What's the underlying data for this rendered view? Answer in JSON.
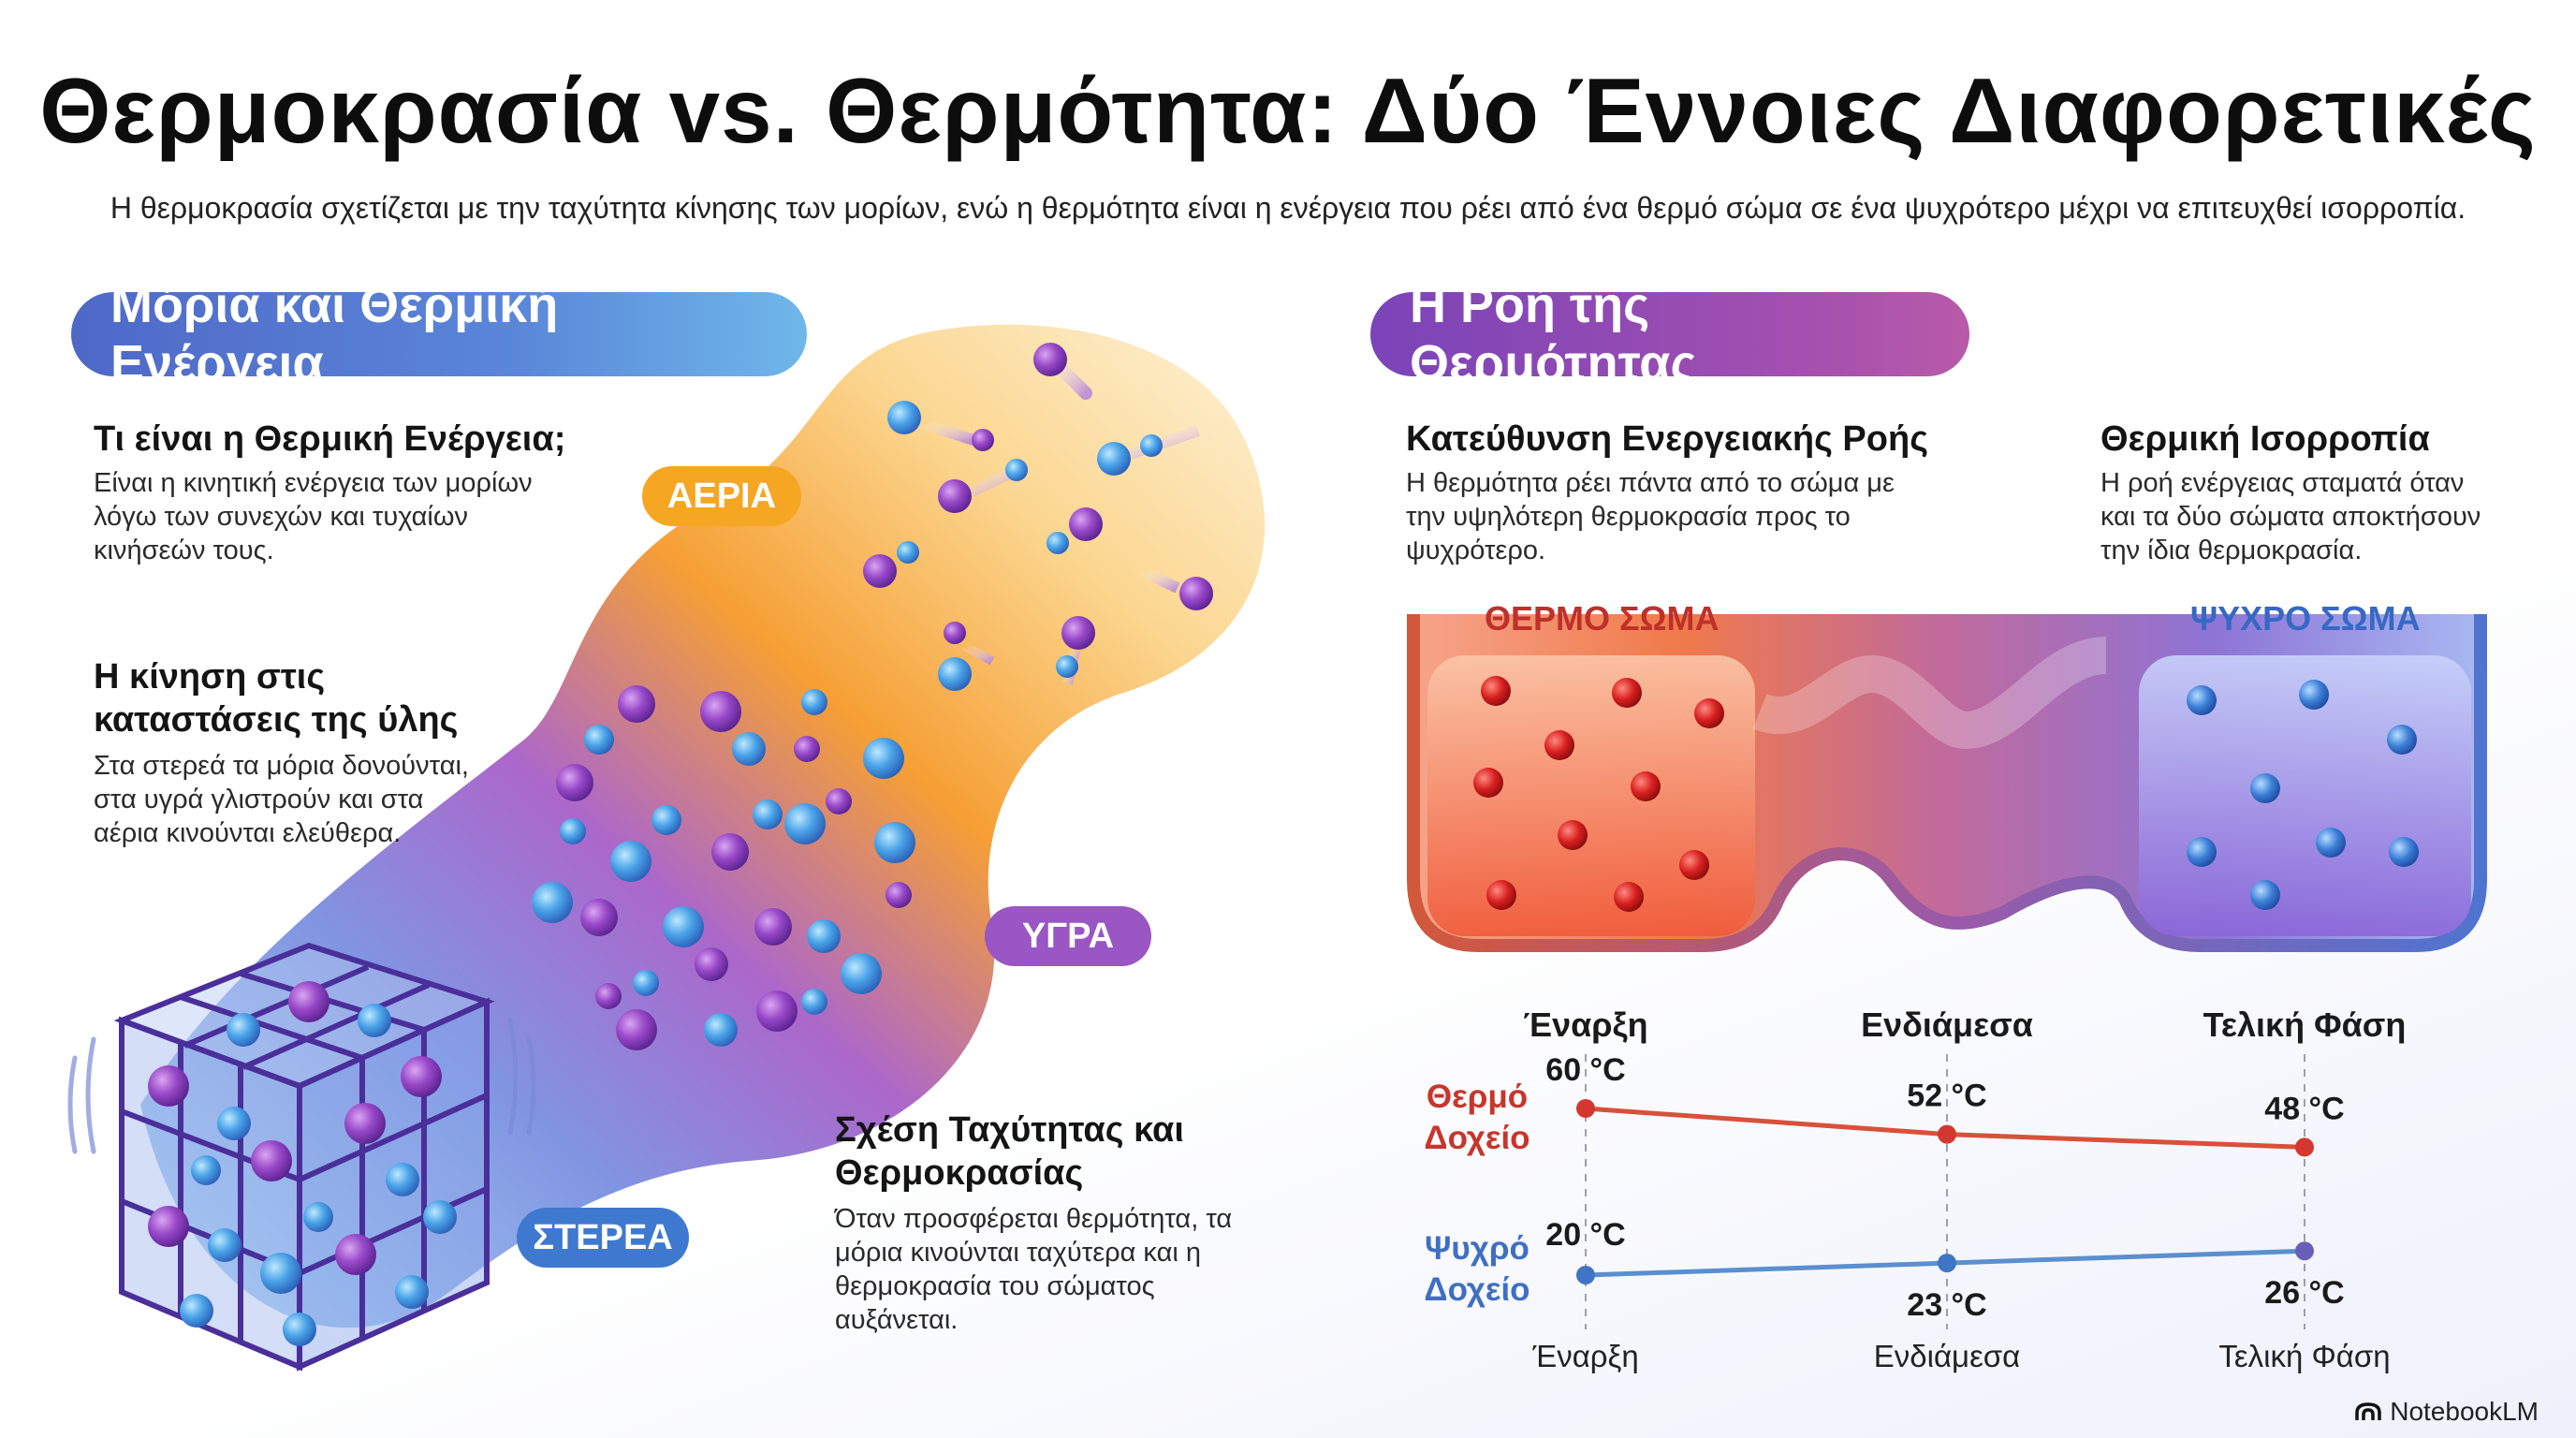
{
  "title": "Θερμοκρασία vs. Θερμότητα: Δύο Έννοιες Διαφορετικές",
  "subtitle": "Η θερμοκρασία σχετίζεται με την ταχύτητα κίνησης των μορίων, ενώ η θερμότητα είναι η ενέργεια που ρέει από ένα θερμό σώμα σε ένα ψυχρότερο μέχρι να επιτευχθεί ισορροπία.",
  "left": {
    "header": "Μόρια και Θερμική Ενέργεια",
    "blocks": [
      {
        "heading": "Τι είναι η Θερμική Ενέργεια;",
        "lines": [
          "Είναι η κινητική ενέργεια των μορίων",
          "λόγω των συνεχών και τυχαίων",
          "κινήσεών τους."
        ]
      },
      {
        "heading_lines": [
          "Η κίνηση στις",
          "καταστάσεις της ύλης"
        ],
        "lines": [
          "Στα στερεά τα μόρια δονούνται,",
          "στα υγρά γλιστρούν και στα",
          "αέρια κινούνται ελεύθερα."
        ]
      },
      {
        "heading_lines": [
          "Σχέση Ταχύτητας και",
          "Θερμοκρασίας"
        ],
        "lines": [
          "Όταν προσφέρεται θερμότητα, τα",
          "μόρια κινούνται ταχύτερα και η",
          "θερμοκρασία του σώματος",
          "αυξάνεται."
        ]
      }
    ],
    "states": {
      "gas": "ΑΕΡΙΑ",
      "liquid": "ΥΓΡΑ",
      "solid": "ΣΤΕΡΕΑ"
    }
  },
  "right": {
    "header": "Η Ροή της Θερμότητας",
    "direction": {
      "heading": "Κατεύθυνση Ενεργειακής Ροής",
      "lines": [
        "Η θερμότητα ρέει πάντα από το σώμα με",
        "την υψηλότερη θερμοκρασία προς το",
        "ψυχρότερο."
      ]
    },
    "equilibrium": {
      "heading": "Θερμική Ισορροπία",
      "lines": [
        "Η ροή ενέργειας σταματά όταν",
        "και τα δύο σώματα αποκτήσουν",
        "την ίδια θερμοκρασία."
      ]
    },
    "hot_body": "ΘΕΡΜΟ ΣΩΜΑ",
    "cold_body": "ΨΥΧΡΟ ΣΩΜΑ",
    "colors": {
      "hot": "#d4372f",
      "cold": "#3f75c4",
      "hot_line": "#d9503a",
      "cold_line": "#5a8fd0"
    }
  },
  "chart_data": {
    "type": "line",
    "categories": [
      "Έναρξη",
      "Ενδιάμεσα",
      "Τελική Φάση"
    ],
    "series": [
      {
        "name": "Θερμό Δοχείο",
        "values": [
          60,
          52,
          48
        ],
        "labels": [
          "60 °C",
          "52 °C",
          "48 °C"
        ]
      },
      {
        "name": "Ψυχρό Δοχείο",
        "values": [
          20,
          23,
          26
        ],
        "labels": [
          "20 °C",
          "23 °C",
          "26 °C"
        ]
      }
    ],
    "row_labels": {
      "hot": [
        "Θερμό",
        "Δοχείο"
      ],
      "cold": [
        "Ψυχρό",
        "Δοχείο"
      ]
    }
  },
  "brand": "NotebookLM",
  "icons": {
    "brand": "notebooklm-logo-icon"
  }
}
